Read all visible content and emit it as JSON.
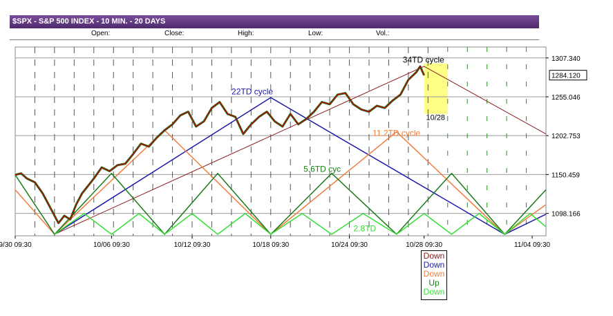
{
  "title": "$SPX - S&P 500 INDEX - 10 MIN. - 20 DAYS",
  "ohlc_labels": [
    "Open:",
    "Close:",
    "High:",
    "Low:",
    "Vol.:"
  ],
  "colors": {
    "title_bar": "#5b3a7e",
    "price": "#cc0000",
    "cycle_34": "#8b1a1a",
    "cycle_22": "#1a1aa8",
    "cycle_11": "#f07d3c",
    "cycle_5_6": "#1a7a1a",
    "cycle_2_8": "#33dd33",
    "highlight": "#ffff88"
  },
  "legend": [
    {
      "text": "Down",
      "color": "#8b1a1a"
    },
    {
      "text": "Down",
      "color": "#1a1aa8"
    },
    {
      "text": "Down",
      "color": "#f07d3c"
    },
    {
      "text": "Up",
      "color": "#1a7a1a"
    },
    {
      "text": "Down",
      "color": "#33dd33"
    }
  ],
  "highlight_label": "10/28",
  "chart_data": {
    "type": "line",
    "title": "$SPX - S&P 500 INDEX - 10 MIN. - 20 DAYS",
    "x_ticks": [
      "9/30 09:30",
      "10/06 09:30",
      "10/12 09:30",
      "10/18 09:30",
      "10/24 09:30",
      "10/28 09:30",
      "11/04 09:30"
    ],
    "y_ticks": [
      1307.34,
      1255.046,
      1202.753,
      1150.459,
      1098.166
    ],
    "y_range": [
      1068,
      1322
    ],
    "current_price": 1284.12,
    "grid": true,
    "annotations": [
      "34TD cycle",
      "22TD cycle",
      "11.2TD cycle",
      "5.6TD cyc",
      "2.8TD"
    ],
    "price_series": {
      "x": [
        0,
        0.3,
        0.6,
        1,
        1.4,
        1.8,
        2.2,
        2.5,
        2.8,
        3.1,
        3.4,
        3.7,
        4.0,
        4.4,
        4.8,
        5.2,
        5.6,
        6.0,
        6.4,
        6.8,
        7.2,
        7.6,
        8.0,
        8.4,
        8.8,
        9.2,
        9.6,
        10.0,
        10.4,
        10.8,
        11.2,
        11.6,
        12.0,
        12.4,
        12.8,
        13.2,
        13.6,
        14.0,
        14.4,
        14.8,
        15.2,
        15.6,
        16.0,
        16.4,
        16.8,
        17.2,
        17.6,
        18.0,
        18.4,
        18.8,
        19.2,
        19.6,
        20.0,
        20.4,
        20.6,
        20.8
      ],
      "y": [
        1150,
        1152,
        1145,
        1140,
        1125,
        1105,
        1085,
        1095,
        1090,
        1110,
        1125,
        1135,
        1145,
        1160,
        1155,
        1163,
        1165,
        1178,
        1192,
        1188,
        1200,
        1210,
        1218,
        1230,
        1235,
        1215,
        1222,
        1240,
        1248,
        1232,
        1228,
        1205,
        1218,
        1228,
        1235,
        1222,
        1215,
        1232,
        1218,
        1225,
        1235,
        1248,
        1245,
        1258,
        1260,
        1245,
        1238,
        1235,
        1243,
        1240,
        1250,
        1258,
        1278,
        1288,
        1296,
        1284
      ]
    },
    "series": [
      {
        "values_x": [
          2.0,
          20.8,
          27.0
        ],
        "values_y": [
          1070,
          1296,
          1205
        ]
      },
      {
        "values_x": [
          2.0,
          13.0,
          24.9,
          27.0
        ],
        "values_y": [
          1070,
          1254,
          1070,
          1097
        ]
      },
      {
        "values_x": [
          0,
          2.0,
          7.6,
          13.0,
          19.4,
          24.9,
          27.0
        ],
        "values_y": [
          1130,
          1070,
          1210,
          1070,
          1208,
          1070,
          1110
        ]
      },
      {
        "values_x": [
          0,
          2.0,
          4.9,
          7.6,
          10.3,
          13.0,
          16.1,
          19.4,
          22.2,
          24.9,
          27.0
        ],
        "values_y": [
          1150,
          1070,
          1152,
          1070,
          1152,
          1070,
          1152,
          1070,
          1152,
          1070,
          1130
        ]
      },
      {
        "values_x": [
          2.0,
          3.5,
          4.9,
          6.3,
          7.6,
          9.0,
          10.3,
          11.7,
          13.0,
          14.6,
          16.1,
          17.7,
          19.4,
          20.8,
          22.2,
          23.6,
          24.9,
          26.2,
          27.0
        ],
        "values_y": [
          1070,
          1098,
          1070,
          1098,
          1070,
          1098,
          1070,
          1098,
          1070,
          1098,
          1070,
          1098,
          1070,
          1098,
          1070,
          1098,
          1070,
          1098,
          1080
        ]
      }
    ]
  }
}
